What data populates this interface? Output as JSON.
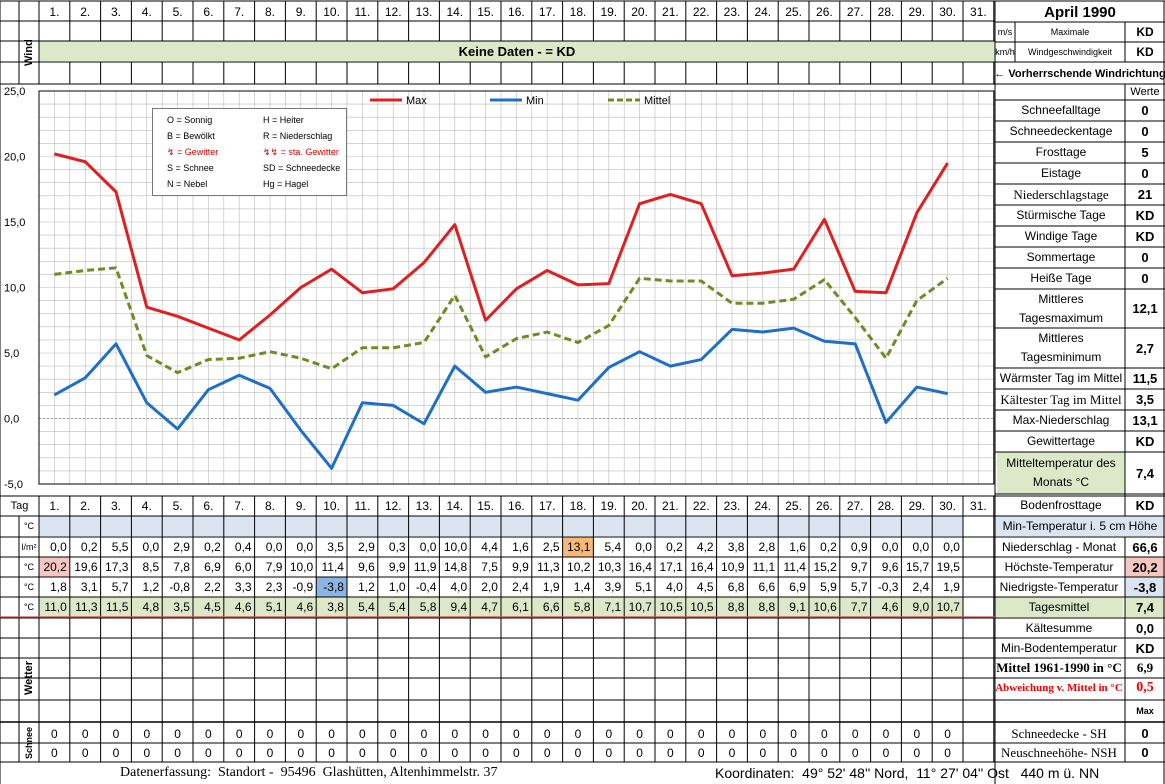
{
  "sheet": {
    "month_title": "April 1990",
    "days": [
      "1.",
      "2.",
      "3.",
      "4.",
      "5.",
      "6.",
      "7.",
      "8.",
      "9.",
      "10.",
      "11.",
      "12.",
      "13.",
      "14.",
      "15.",
      "16.",
      "17.",
      "18.",
      "19.",
      "20.",
      "21.",
      "22.",
      "23.",
      "24.",
      "25.",
      "26.",
      "27.",
      "28.",
      "29.",
      "30.",
      "31."
    ],
    "wind_label": "Wind",
    "wind_banner": "Keine Daten -  = KD",
    "unit_ms": "m/s",
    "unit_kmh": "km/h",
    "max_wind_label_1": "Maximale",
    "max_wind_label_2": "Windgeschwindigkeit",
    "max_wind_ms": "KD",
    "max_wind_kmh": "KD",
    "wind_dir_label": "← Vorherrschende Windrichtung",
    "werte_label": "Werte",
    "tag_label": "Tag",
    "unit_c": "°C",
    "unit_lm2": "l/m²",
    "wetter_label": "Wetter",
    "schnee_label": "Schnee",
    "footer_left": "Datenerfassung:  Standort -  95496  Glashütten, Altenhimmelstr. 37",
    "footer_right": "Koordinaten:  49° 52' 48'' Nord,  11° 27' 04'' Ost   440 m ü. NN"
  },
  "legend_box": {
    "items": [
      "O = Sonnig",
      "H = Heiter",
      "B = Bewölkt",
      "R = Niederschlag",
      "↯ = Gewitter",
      "↯↯ = sta. Gewitter",
      "S = Schnee",
      "SD = Schneedecke",
      "N = Nebel",
      "Hg = Hagel"
    ]
  },
  "stats": [
    {
      "label": "Schneefalltage",
      "value": "0"
    },
    {
      "label": "Schneedeckentage",
      "value": "0"
    },
    {
      "label": "Frosttage",
      "value": "5"
    },
    {
      "label": "Eistage",
      "value": "0"
    },
    {
      "label": "Niederschlagstage",
      "value": "21"
    },
    {
      "label": "Stürmische Tage",
      "value": "KD"
    },
    {
      "label": "Windige Tage",
      "value": "KD"
    },
    {
      "label": "Sommertage",
      "value": "0"
    },
    {
      "label": "Heiße Tage",
      "value": "0"
    },
    {
      "label": "Mittleres Tagesmaximum",
      "value": "12,1"
    },
    {
      "label": "Mittleres Tagesminimum",
      "value": "2,7"
    },
    {
      "label": "Wärmster Tag im Mittel",
      "value": "11,5"
    },
    {
      "label": "Kältester Tag im Mittel",
      "value": "3,5"
    },
    {
      "label": "Max-Niederschlag",
      "value": "13,1"
    },
    {
      "label": "Gewittertage",
      "value": "KD"
    },
    {
      "label": "Mitteltemperatur des Monats °C",
      "value": "7,4"
    },
    {
      "label": "Bodenfrosttage",
      "value": "KD"
    }
  ],
  "bottom_stats": {
    "min_temp_5cm": "Min-Temperatur i. 5 cm Höhe",
    "niederschlag_label": "Niederschlag - Monat",
    "niederschlag_value": "66,6",
    "hoechste_label": "Höchste-Temperatur",
    "hoechste_value": "20,2",
    "niedrigste_label": "Niedrigste-Temperatur",
    "niedrigste_value": "-3,8",
    "tagesmittel_label": "Tagesmittel",
    "tagesmittel_value": "7,4",
    "kaeltesumme_label": "Kältesumme",
    "kaeltesumme_value": "0,0",
    "minboden_label": "Min-Bodentemperatur",
    "minboden_value": "KD",
    "mittel_label": "Mittel 1961-1990 in °C",
    "mittel_value": "6,9",
    "abweichung_label": "Abweichung v. Mittel in °C",
    "abweichung_value": "0,5",
    "max_label": "Max",
    "schneedecke_label": "Schneedecke -   SH",
    "schneedecke_value": "0",
    "neuschnee_label": "Neuschneehöhe- NSH",
    "neuschnee_value": "0"
  },
  "table": {
    "niederschlag": [
      "0,0",
      "0,2",
      "5,5",
      "0,0",
      "2,9",
      "0,2",
      "0,4",
      "0,0",
      "0,0",
      "3,5",
      "2,9",
      "0,3",
      "0,0",
      "10,0",
      "4,4",
      "1,6",
      "2,5",
      "13,1",
      "5,4",
      "0,0",
      "0,2",
      "4,2",
      "3,8",
      "2,8",
      "1,6",
      "0,2",
      "0,9",
      "0,0",
      "0,0",
      "0,0"
    ],
    "max": [
      "20,2",
      "19,6",
      "17,3",
      "8,5",
      "7,8",
      "6,9",
      "6,0",
      "7,9",
      "10,0",
      "11,4",
      "9,6",
      "9,9",
      "11,9",
      "14,8",
      "7,5",
      "9,9",
      "11,3",
      "10,2",
      "10,3",
      "16,4",
      "17,1",
      "16,4",
      "10,9",
      "11,1",
      "11,4",
      "15,2",
      "9,7",
      "9,6",
      "15,7",
      "19,5"
    ],
    "min": [
      "1,8",
      "3,1",
      "5,7",
      "1,2",
      "-0,8",
      "2,2",
      "3,3",
      "2,3",
      "-0,9",
      "-3,8",
      "1,2",
      "1,0",
      "-0,4",
      "4,0",
      "2,0",
      "2,4",
      "1,9",
      "1,4",
      "3,9",
      "5,1",
      "4,0",
      "4,5",
      "6,8",
      "6,6",
      "6,9",
      "5,9",
      "5,7",
      "-0,3",
      "2,4",
      "1,9"
    ],
    "mittel": [
      "11,0",
      "11,3",
      "11,5",
      "4,8",
      "3,5",
      "4,5",
      "4,6",
      "5,1",
      "4,6",
      "3,8",
      "5,4",
      "5,4",
      "5,8",
      "9,4",
      "4,7",
      "6,1",
      "6,6",
      "5,8",
      "7,1",
      "10,7",
      "10,5",
      "10,5",
      "8,8",
      "8,8",
      "9,1",
      "10,6",
      "7,7",
      "4,6",
      "9,0",
      "10,7"
    ],
    "schnee_sh": [
      "0",
      "0",
      "0",
      "0",
      "0",
      "0",
      "0",
      "0",
      "0",
      "0",
      "0",
      "0",
      "0",
      "0",
      "0",
      "0",
      "0",
      "0",
      "0",
      "0",
      "0",
      "0",
      "0",
      "0",
      "0",
      "0",
      "0",
      "0",
      "0",
      "0"
    ],
    "schnee_nsh": [
      "0",
      "0",
      "0",
      "0",
      "0",
      "0",
      "0",
      "0",
      "0",
      "0",
      "0",
      "0",
      "0",
      "0",
      "0",
      "0",
      "0",
      "0",
      "0",
      "0",
      "0",
      "0",
      "0",
      "0",
      "0",
      "0",
      "0",
      "0",
      "0",
      "0"
    ]
  },
  "chart_data": {
    "type": "line",
    "x": [
      1,
      2,
      3,
      4,
      5,
      6,
      7,
      8,
      9,
      10,
      11,
      12,
      13,
      14,
      15,
      16,
      17,
      18,
      19,
      20,
      21,
      22,
      23,
      24,
      25,
      26,
      27,
      28,
      29,
      30
    ],
    "series": [
      {
        "name": "Max",
        "color": "#e02020",
        "dash": false,
        "values": [
          20.2,
          19.6,
          17.3,
          8.5,
          7.8,
          6.9,
          6.0,
          7.9,
          10.0,
          11.4,
          9.6,
          9.9,
          11.9,
          14.8,
          7.5,
          9.9,
          11.3,
          10.2,
          10.3,
          16.4,
          17.1,
          16.4,
          10.9,
          11.1,
          11.4,
          15.2,
          9.7,
          9.6,
          15.7,
          19.5
        ]
      },
      {
        "name": "Min",
        "color": "#1f6fc4",
        "dash": false,
        "values": [
          1.8,
          3.1,
          5.7,
          1.2,
          -0.8,
          2.2,
          3.3,
          2.3,
          -0.9,
          -3.8,
          1.2,
          1.0,
          -0.4,
          4.0,
          2.0,
          2.4,
          1.9,
          1.4,
          3.9,
          5.1,
          4.0,
          4.5,
          6.8,
          6.6,
          6.9,
          5.9,
          5.7,
          -0.3,
          2.4,
          1.9
        ]
      },
      {
        "name": "Mittel",
        "color": "#6b8e23",
        "dash": true,
        "values": [
          11.0,
          11.3,
          11.5,
          4.8,
          3.5,
          4.5,
          4.6,
          5.1,
          4.6,
          3.8,
          5.4,
          5.4,
          5.8,
          9.4,
          4.7,
          6.1,
          6.6,
          5.8,
          7.1,
          10.7,
          10.5,
          10.5,
          8.8,
          8.8,
          9.1,
          10.6,
          7.7,
          4.6,
          9.0,
          10.7
        ]
      }
    ],
    "ylim": [
      -5,
      25
    ],
    "yticks": [
      "-5,0",
      "0,0",
      "5,0",
      "10,0",
      "15,0",
      "20,0",
      "25,0"
    ],
    "grid": true,
    "legend": "top"
  }
}
